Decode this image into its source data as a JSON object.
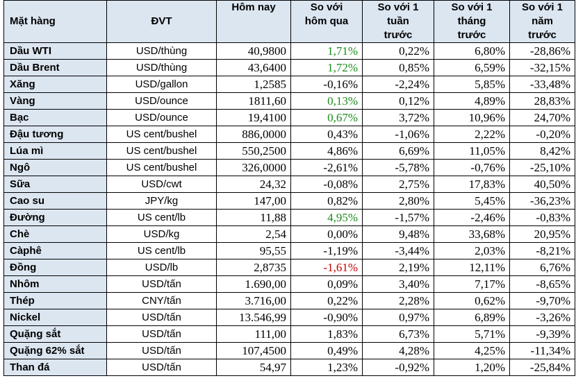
{
  "table": {
    "headers": [
      "Mặt hàng",
      "ĐVT",
      "Hôm nay",
      "So với\nhôm qua",
      "So với 1\ntuần\ntrước",
      "So với 1\ntháng\ntrước",
      "So với 1\nnăm\ntrước"
    ],
    "rows": [
      {
        "name": "Dầu WTI",
        "unit": "USD/thùng",
        "today": "40,9800",
        "d1": "1,71%",
        "w1": "0,22%",
        "m1": "6,80%",
        "y1": "-28,86%",
        "d1_trend": "up"
      },
      {
        "name": "Dầu Brent",
        "unit": "USD/thùng",
        "today": "43,6400",
        "d1": "1,72%",
        "w1": "0,85%",
        "m1": "6,59%",
        "y1": "-32,15%",
        "d1_trend": "up"
      },
      {
        "name": "Xăng",
        "unit": "USD/gallon",
        "today": "1,2585",
        "d1": "-0,16%",
        "w1": "-2,24%",
        "m1": "5,85%",
        "y1": "-33,48%",
        "d1_trend": "none"
      },
      {
        "name": "Vàng",
        "unit": "USD/ounce",
        "today": "1811,60",
        "d1": "0,13%",
        "w1": "0,12%",
        "m1": "4,89%",
        "y1": "28,83%",
        "d1_trend": "up"
      },
      {
        "name": "Bạc",
        "unit": "USD/ounce",
        "today": "19,4100",
        "d1": "0,67%",
        "w1": "3,72%",
        "m1": "10,96%",
        "y1": "24,70%",
        "d1_trend": "up"
      },
      {
        "name": "Đậu tương",
        "unit": "US cent/bushel",
        "today": "886,0000",
        "d1": "0,43%",
        "w1": "-1,06%",
        "m1": "2,22%",
        "y1": "-0,20%",
        "d1_trend": "none"
      },
      {
        "name": "Lúa mì",
        "unit": "US cent/bushel",
        "today": "550,2500",
        "d1": "4,86%",
        "w1": "6,69%",
        "m1": "11,05%",
        "y1": "8,42%",
        "d1_trend": "none"
      },
      {
        "name": "Ngô",
        "unit": "US cent/bushel",
        "today": "326,0000",
        "d1": "-2,61%",
        "w1": "-5,78%",
        "m1": "-0,76%",
        "y1": "-25,10%",
        "d1_trend": "none"
      },
      {
        "name": "Sữa",
        "unit": "USD/cwt",
        "today": "24,32",
        "d1": "-0,08%",
        "w1": "2,75%",
        "m1": "17,83%",
        "y1": "40,50%",
        "d1_trend": "none"
      },
      {
        "name": "Cao su",
        "unit": "JPY/kg",
        "today": "147,00",
        "d1": "0,82%",
        "w1": "2,80%",
        "m1": "5,45%",
        "y1": "-36,23%",
        "d1_trend": "none"
      },
      {
        "name": "Đường",
        "unit": "US cent/lb",
        "today": "11,88",
        "d1": "4,95%",
        "w1": "-1,57%",
        "m1": "-2,46%",
        "y1": "-0,83%",
        "d1_trend": "up"
      },
      {
        "name": "Chè",
        "unit": "USD/kg",
        "today": "2,54",
        "d1": "0,00%",
        "w1": "9,48%",
        "m1": "33,68%",
        "y1": "20,95%",
        "d1_trend": "none"
      },
      {
        "name": "Càphê",
        "unit": "US cent/lb",
        "today": "95,55",
        "d1": "-1,19%",
        "w1": "-3,44%",
        "m1": "2,03%",
        "y1": "-8,21%",
        "d1_trend": "none"
      },
      {
        "name": "Đồng",
        "unit": "USD/lb",
        "today": "2,8735",
        "d1": "-1,61%",
        "w1": "2,19%",
        "m1": "12,11%",
        "y1": "6,76%",
        "d1_trend": "down"
      },
      {
        "name": "Nhôm",
        "unit": "USD/tấn",
        "today": "1.690,00",
        "d1": "0,09%",
        "w1": "3,40%",
        "m1": "7,17%",
        "y1": "-8,65%",
        "d1_trend": "none"
      },
      {
        "name": "Thép",
        "unit": "CNY/tấn",
        "today": "3.716,00",
        "d1": "0,22%",
        "w1": "2,28%",
        "m1": "0,62%",
        "y1": "-9,70%",
        "d1_trend": "none"
      },
      {
        "name": "Nickel",
        "unit": "USD/tấn",
        "today": "13.546,99",
        "d1": "-0,90%",
        "w1": "0,97%",
        "m1": "6,89%",
        "y1": "-3,26%",
        "d1_trend": "none"
      },
      {
        "name": "Quặng sắt",
        "unit": "USD/tấn",
        "today": "111,00",
        "d1": "1,83%",
        "w1": "6,73%",
        "m1": "5,71%",
        "y1": "-9,39%",
        "d1_trend": "none"
      },
      {
        "name": "Quặng 62% sắt",
        "unit": "USD/tấn",
        "today": "107,4500",
        "d1": "0,49%",
        "w1": "4,28%",
        "m1": "4,25%",
        "y1": "-11,34%",
        "d1_trend": "none"
      },
      {
        "name": "Than đá",
        "unit": "USD/tấn",
        "today": "54,97",
        "d1": "1,23%",
        "w1": "-0,92%",
        "m1": "1,20%",
        "y1": "-25,84%",
        "d1_trend": "none"
      }
    ]
  },
  "colors": {
    "header_bg": "#dce6f1",
    "up": "#1a8c1a",
    "down": "#c00000"
  }
}
